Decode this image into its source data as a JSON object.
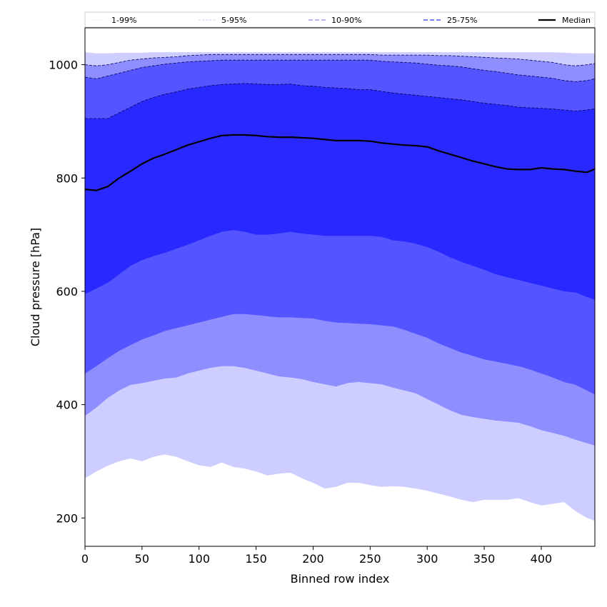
{
  "chart_data": {
    "type": "area",
    "title": "",
    "xlabel": "Binned row index",
    "ylabel": "Cloud pressure [hPa]",
    "xlim": [
      0,
      447
    ],
    "ylim": [
      150,
      1065
    ],
    "xticks": [
      0,
      50,
      100,
      150,
      200,
      250,
      300,
      350,
      400
    ],
    "yticks": [
      200,
      400,
      600,
      800,
      1000
    ],
    "grid": false,
    "legend": {
      "position": "top",
      "entries": [
        {
          "label": "1-99%",
          "color": "#e3e3fa",
          "dash": "solid",
          "width": 0.6
        },
        {
          "label": "5-95%",
          "color": "#b8b8f0",
          "dash": "3,2",
          "width": 0.8
        },
        {
          "label": "10-90%",
          "color": "#8c8cf2",
          "dash": "6,3",
          "width": 1.2
        },
        {
          "label": "25-75%",
          "color": "#5555f0",
          "dash": "6,3",
          "width": 1.4
        },
        {
          "label": "Median",
          "color": "#000000",
          "dash": "solid",
          "width": 2.2
        }
      ]
    },
    "x": [
      0,
      10,
      20,
      30,
      40,
      50,
      60,
      70,
      80,
      90,
      100,
      110,
      120,
      130,
      140,
      150,
      160,
      170,
      180,
      190,
      200,
      210,
      220,
      230,
      240,
      250,
      260,
      270,
      280,
      290,
      300,
      310,
      320,
      330,
      340,
      350,
      360,
      370,
      380,
      390,
      400,
      410,
      420,
      430,
      440,
      447
    ],
    "bands": [
      {
        "name": "1-99%",
        "color": "#cdcdff",
        "lower": [
          270,
          282,
          292,
          300,
          305,
          300,
          308,
          312,
          308,
          300,
          293,
          290,
          298,
          290,
          287,
          282,
          275,
          278,
          280,
          270,
          262,
          252,
          255,
          262,
          262,
          258,
          255,
          256,
          255,
          252,
          248,
          243,
          238,
          232,
          228,
          232,
          232,
          232,
          235,
          228,
          222,
          225,
          228,
          212,
          200,
          195
        ],
        "upper": [
          1022,
          1020,
          1020,
          1021,
          1021,
          1021,
          1022,
          1022,
          1022,
          1022,
          1022,
          1022,
          1022,
          1022,
          1022,
          1022,
          1022,
          1022,
          1022,
          1022,
          1022,
          1022,
          1022,
          1022,
          1022,
          1022,
          1022,
          1022,
          1022,
          1022,
          1022,
          1022,
          1022,
          1022,
          1022,
          1022,
          1022,
          1022,
          1022,
          1022,
          1022,
          1022,
          1021,
          1020,
          1020,
          1020
        ]
      },
      {
        "name": "5-95%",
        "color": "#8e8eff",
        "lower": [
          380,
          395,
          412,
          425,
          435,
          438,
          442,
          446,
          448,
          455,
          460,
          465,
          468,
          468,
          465,
          460,
          455,
          450,
          448,
          445,
          440,
          436,
          432,
          438,
          440,
          438,
          436,
          430,
          425,
          420,
          410,
          400,
          390,
          382,
          378,
          375,
          372,
          370,
          368,
          362,
          355,
          350,
          345,
          338,
          332,
          328
        ],
        "upper": [
          1000,
          998,
          1000,
          1004,
          1008,
          1010,
          1012,
          1013,
          1014,
          1016,
          1017,
          1018,
          1018,
          1018,
          1018,
          1018,
          1018,
          1018,
          1018,
          1018,
          1018,
          1018,
          1018,
          1018,
          1018,
          1018,
          1017,
          1017,
          1017,
          1017,
          1017,
          1016,
          1016,
          1015,
          1014,
          1013,
          1012,
          1011,
          1010,
          1008,
          1006,
          1004,
          1000,
          998,
          1000,
          1002
        ]
      },
      {
        "name": "10-90%",
        "color": "#5555ff",
        "lower": [
          455,
          468,
          482,
          495,
          505,
          515,
          522,
          530,
          535,
          540,
          545,
          550,
          555,
          560,
          560,
          558,
          556,
          554,
          554,
          553,
          552,
          548,
          545,
          544,
          543,
          542,
          540,
          538,
          532,
          525,
          518,
          508,
          500,
          492,
          486,
          480,
          476,
          472,
          468,
          462,
          455,
          448,
          440,
          435,
          425,
          418
        ],
        "upper": [
          978,
          975,
          980,
          985,
          990,
          995,
          998,
          1001,
          1003,
          1005,
          1006,
          1007,
          1008,
          1008,
          1008,
          1008,
          1008,
          1008,
          1008,
          1008,
          1008,
          1008,
          1008,
          1008,
          1008,
          1008,
          1006,
          1005,
          1004,
          1003,
          1001,
          999,
          998,
          996,
          993,
          990,
          988,
          985,
          982,
          980,
          978,
          976,
          972,
          970,
          972,
          975
        ]
      },
      {
        "name": "25-75%",
        "color": "#2929ff",
        "lower": [
          595,
          605,
          615,
          630,
          645,
          655,
          662,
          668,
          675,
          682,
          690,
          698,
          705,
          708,
          705,
          700,
          700,
          702,
          705,
          702,
          700,
          698,
          698,
          698,
          698,
          698,
          696,
          690,
          688,
          684,
          678,
          670,
          660,
          652,
          645,
          638,
          630,
          625,
          620,
          615,
          610,
          605,
          600,
          598,
          590,
          585
        ],
        "upper": [
          905,
          905,
          905,
          915,
          925,
          935,
          942,
          948,
          952,
          957,
          960,
          963,
          965,
          966,
          967,
          966,
          965,
          965,
          966,
          963,
          962,
          960,
          959,
          958,
          956,
          956,
          953,
          950,
          948,
          946,
          944,
          942,
          940,
          938,
          935,
          932,
          930,
          928,
          925,
          924,
          923,
          922,
          920,
          918,
          920,
          922
        ]
      }
    ],
    "series": [
      {
        "name": "Median",
        "color": "#000000",
        "values": [
          780,
          778,
          785,
          800,
          812,
          825,
          835,
          842,
          850,
          858,
          864,
          870,
          875,
          876,
          876,
          875,
          873,
          872,
          872,
          871,
          870,
          868,
          866,
          866,
          866,
          865,
          862,
          860,
          858,
          857,
          855,
          848,
          842,
          836,
          830,
          825,
          820,
          816,
          815,
          815,
          818,
          816,
          815,
          812,
          810,
          816
        ]
      }
    ]
  }
}
